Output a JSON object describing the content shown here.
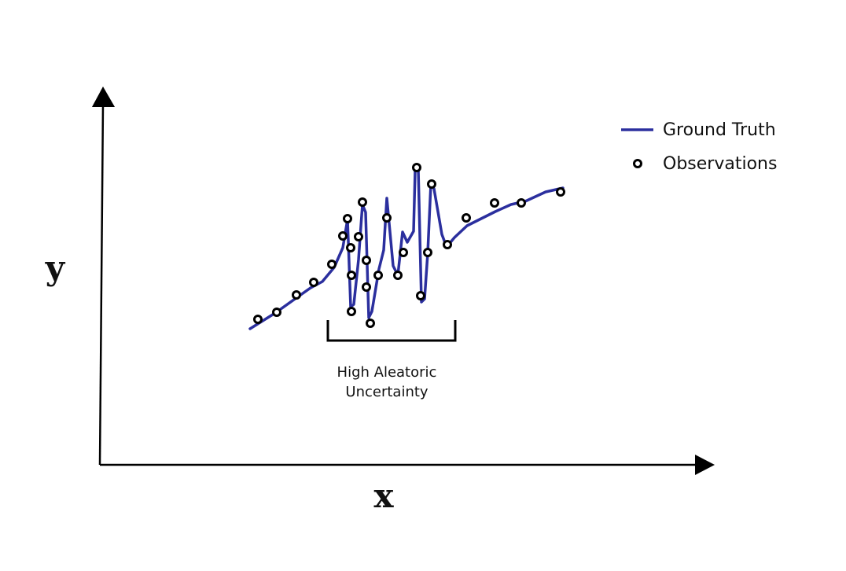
{
  "axes": {
    "x_label": "x",
    "y_label": "y"
  },
  "legend": {
    "ground_truth": "Ground Truth",
    "observations": "Observations"
  },
  "annotation": {
    "line1": "High Aleatoric",
    "line2": "Uncertainty"
  },
  "colors": {
    "ground_truth": "#2b2f9e",
    "observation_edge": "#000000",
    "axis": "#000000"
  }
}
